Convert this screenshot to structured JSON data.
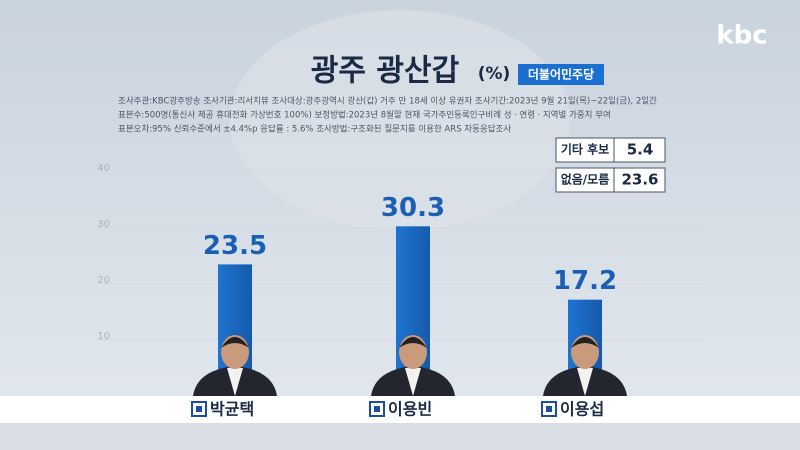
{
  "logo": "kbc",
  "chart_data": {
    "type": "bar",
    "title": "광주 광산갑",
    "unit": "(%)",
    "party": "더불어민주당",
    "notes": [
      "조사주관:KBC광주방송   조사기관:리서치뷰   조사대상:광주광역시 광산(갑) 거주 만 18세 이상 유권자   조사기간:2023년 9월 21일(목)~22일(금), 2일간",
      "표본수:500명(통신사 제공 휴대전화 가상번호 100%)   보정방법:2023년 8월말 현재 국가주민등록인구비례 성ㆍ연령ㆍ지역별 가중치 부여",
      "표본오차:95% 신뢰수준에서 ±4.4%p    응답률 : 5.6%   조사방법:구조화된 질문지를 이용한 ARS 자동응답조사"
    ],
    "categories": [
      "박균택",
      "이용빈",
      "이용섭"
    ],
    "values": [
      23.5,
      30.3,
      17.2
    ],
    "color": "#1b6bc6",
    "ylim": [
      0,
      40
    ],
    "yticks": [
      10,
      20,
      30,
      40
    ],
    "grid": true,
    "extra": [
      {
        "label": "기타 후보",
        "value": 5.4
      },
      {
        "label": "없음/모름",
        "value": 23.6
      }
    ]
  }
}
